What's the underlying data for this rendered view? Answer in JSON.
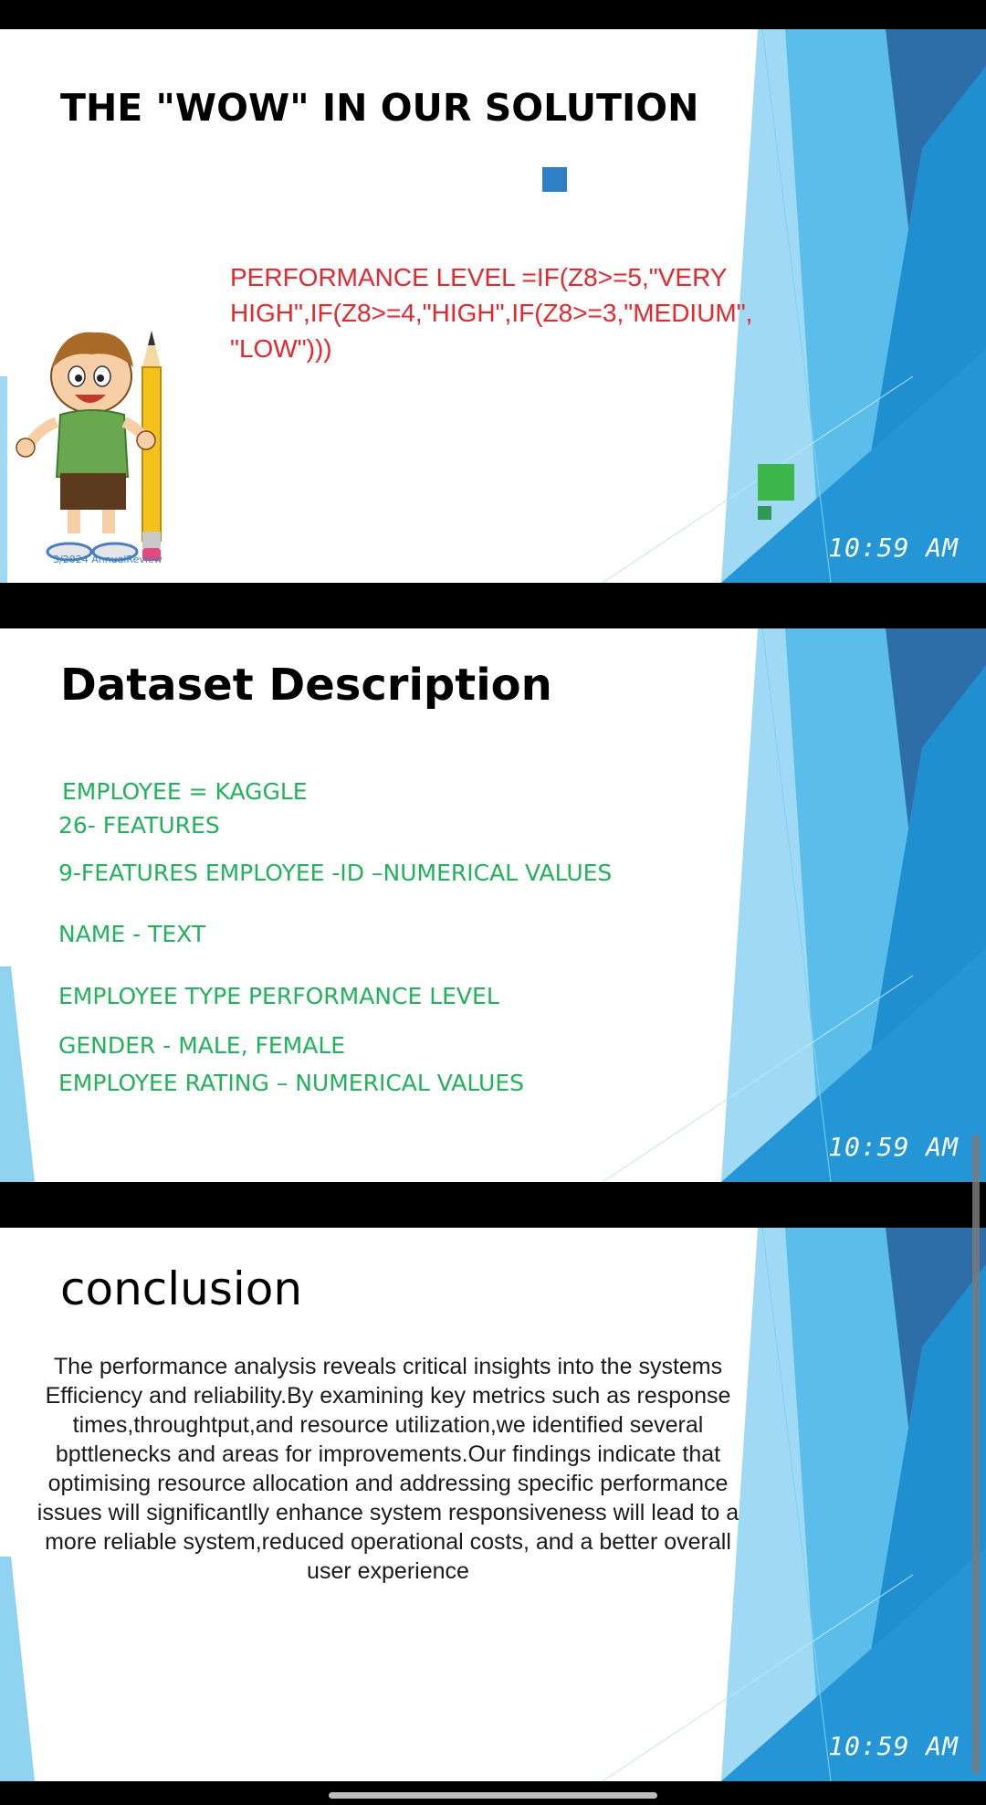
{
  "slides": [
    {
      "title": "THE \"WOW\" IN OUR SOLUTION",
      "formula": "PERFORMANCE LEVEL =IF(Z8>=5,\"VERY HIGH\",IF(Z8>=4,\"HIGH\",IF(Z8>=3,\"MEDIUM\", \"LOW\")))",
      "footnote": "3/2024 AnnualReview",
      "time": "10:59 AM",
      "illustration": "boy-with-pencil-cartoon"
    },
    {
      "title": "Dataset Description",
      "lines": [
        "EMPLOYEE = KAGGLE",
        "26- FEATURES",
        "9-FEATURES EMPLOYEE -ID –NUMERICAL VALUES",
        "NAME - TEXT",
        "EMPLOYEE TYPE PERFORMANCE LEVEL",
        "GENDER - MALE, FEMALE",
        "EMPLOYEE RATING – NUMERICAL VALUES"
      ],
      "time": "10:59 AM"
    },
    {
      "title": "conclusion",
      "body": "The performance analysis reveals critical insights into the systems Efficiency and reliability.By examining key metrics such as response times,throughtput,and resource utilization,we identified several bpttlenecks and areas for improvements.Our findings indicate that optimising resource allocation and addressing specific performance issues will significantlly enhance system responsiveness will lead to a more reliable system,reduced operational costs, and a better overall user experience",
      "time": "10:59 AM"
    }
  ],
  "colors": {
    "formula_red": "#e8262c",
    "dataset_green": "#1fb35a",
    "accent_blue": "#2e7fc8",
    "accent_green": "#3cb54a"
  }
}
